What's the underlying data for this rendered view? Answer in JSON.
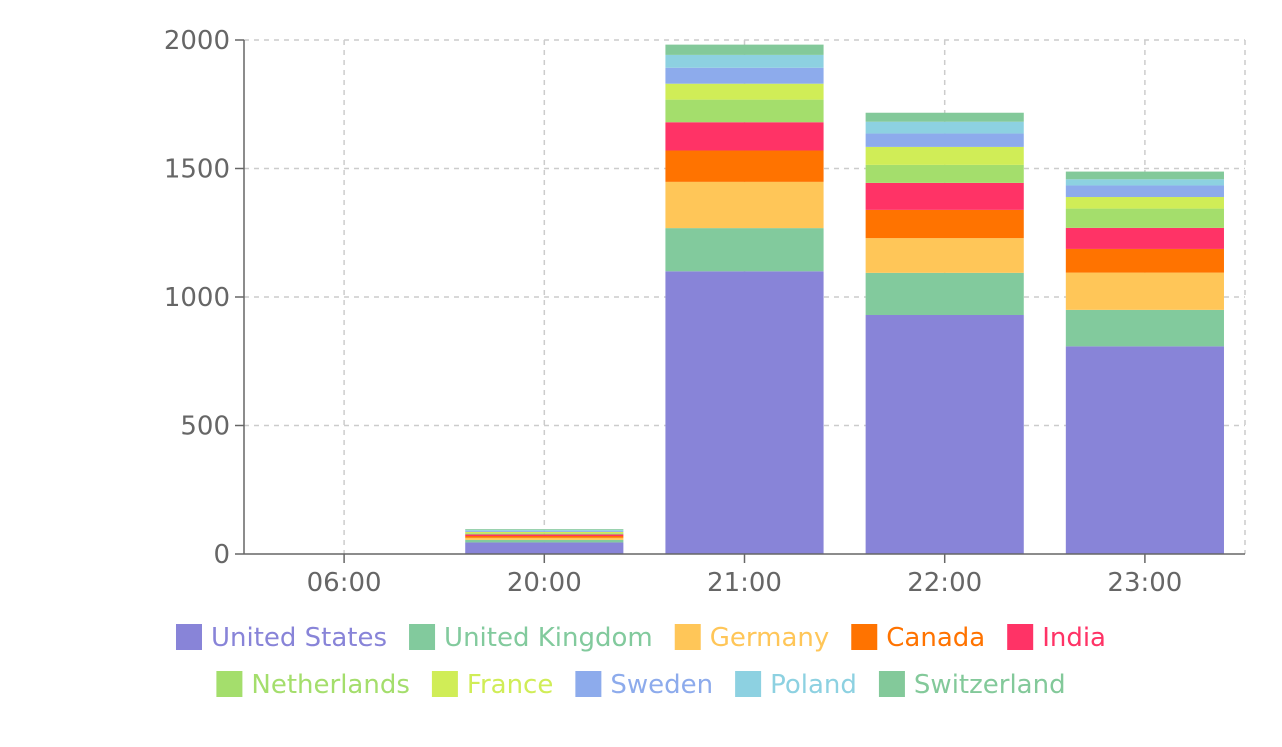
{
  "chart_data": {
    "type": "bar",
    "stacked": true,
    "categories": [
      "06:00",
      "20:00",
      "21:00",
      "22:00",
      "23:00"
    ],
    "ylim": [
      0,
      2000
    ],
    "yticks": [
      0,
      500,
      1000,
      1500,
      2000
    ],
    "grid": true,
    "legend": "bottom",
    "series": [
      {
        "name": "United States",
        "color": "#8884d8",
        "values": [
          0,
          45,
          1100,
          930,
          808
        ]
      },
      {
        "name": "United Kingdom",
        "color": "#82ca9d",
        "values": [
          0,
          10,
          168,
          164,
          142
        ]
      },
      {
        "name": "Germany",
        "color": "#ffc658",
        "values": [
          0,
          8,
          180,
          135,
          145
        ]
      },
      {
        "name": "Canada",
        "color": "#ff7300",
        "values": [
          0,
          7,
          122,
          110,
          92
        ]
      },
      {
        "name": "India",
        "color": "#ff3366",
        "values": [
          0,
          6,
          110,
          105,
          82
        ]
      },
      {
        "name": "Netherlands",
        "color": "#a4de6c",
        "values": [
          0,
          5,
          88,
          70,
          75
        ]
      },
      {
        "name": "France",
        "color": "#d0ed57",
        "values": [
          0,
          5,
          62,
          70,
          45
        ]
      },
      {
        "name": "Sweden",
        "color": "#8dabec",
        "values": [
          0,
          4,
          62,
          52,
          45
        ]
      },
      {
        "name": "Poland",
        "color": "#8dd1e1",
        "values": [
          0,
          4,
          50,
          46,
          24
        ]
      },
      {
        "name": "Switzerland",
        "color": "#83c99a",
        "values": [
          0,
          3,
          40,
          35,
          30
        ]
      }
    ]
  }
}
